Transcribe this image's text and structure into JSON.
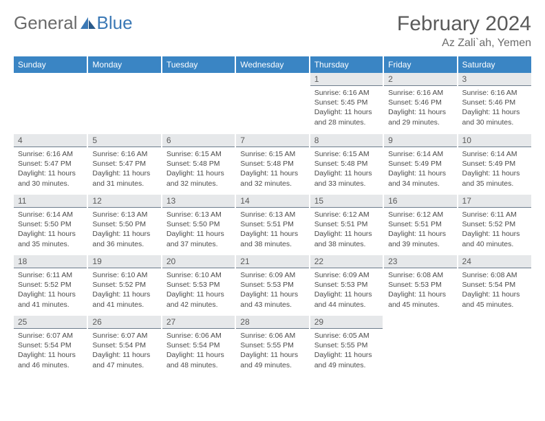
{
  "logo": {
    "general": "General",
    "blue": "Blue"
  },
  "header": {
    "month": "February 2024",
    "location": "Az Zali`ah, Yemen"
  },
  "colors": {
    "brand_blue": "#3a85c4",
    "logo_blue": "#3a78b5",
    "header_gray": "#6a6a6a",
    "daybar_bg": "#e6e8ea",
    "daybar_border": "#6a7a8a",
    "text": "#4a4a4a"
  },
  "weekdays": [
    "Sunday",
    "Monday",
    "Tuesday",
    "Wednesday",
    "Thursday",
    "Friday",
    "Saturday"
  ],
  "weeks": [
    [
      null,
      null,
      null,
      null,
      {
        "n": "1",
        "sr": "Sunrise: 6:16 AM",
        "ss": "Sunset: 5:45 PM",
        "dl": "Daylight: 11 hours and 28 minutes."
      },
      {
        "n": "2",
        "sr": "Sunrise: 6:16 AM",
        "ss": "Sunset: 5:46 PM",
        "dl": "Daylight: 11 hours and 29 minutes."
      },
      {
        "n": "3",
        "sr": "Sunrise: 6:16 AM",
        "ss": "Sunset: 5:46 PM",
        "dl": "Daylight: 11 hours and 30 minutes."
      }
    ],
    [
      {
        "n": "4",
        "sr": "Sunrise: 6:16 AM",
        "ss": "Sunset: 5:47 PM",
        "dl": "Daylight: 11 hours and 30 minutes."
      },
      {
        "n": "5",
        "sr": "Sunrise: 6:16 AM",
        "ss": "Sunset: 5:47 PM",
        "dl": "Daylight: 11 hours and 31 minutes."
      },
      {
        "n": "6",
        "sr": "Sunrise: 6:15 AM",
        "ss": "Sunset: 5:48 PM",
        "dl": "Daylight: 11 hours and 32 minutes."
      },
      {
        "n": "7",
        "sr": "Sunrise: 6:15 AM",
        "ss": "Sunset: 5:48 PM",
        "dl": "Daylight: 11 hours and 32 minutes."
      },
      {
        "n": "8",
        "sr": "Sunrise: 6:15 AM",
        "ss": "Sunset: 5:48 PM",
        "dl": "Daylight: 11 hours and 33 minutes."
      },
      {
        "n": "9",
        "sr": "Sunrise: 6:14 AM",
        "ss": "Sunset: 5:49 PM",
        "dl": "Daylight: 11 hours and 34 minutes."
      },
      {
        "n": "10",
        "sr": "Sunrise: 6:14 AM",
        "ss": "Sunset: 5:49 PM",
        "dl": "Daylight: 11 hours and 35 minutes."
      }
    ],
    [
      {
        "n": "11",
        "sr": "Sunrise: 6:14 AM",
        "ss": "Sunset: 5:50 PM",
        "dl": "Daylight: 11 hours and 35 minutes."
      },
      {
        "n": "12",
        "sr": "Sunrise: 6:13 AM",
        "ss": "Sunset: 5:50 PM",
        "dl": "Daylight: 11 hours and 36 minutes."
      },
      {
        "n": "13",
        "sr": "Sunrise: 6:13 AM",
        "ss": "Sunset: 5:50 PM",
        "dl": "Daylight: 11 hours and 37 minutes."
      },
      {
        "n": "14",
        "sr": "Sunrise: 6:13 AM",
        "ss": "Sunset: 5:51 PM",
        "dl": "Daylight: 11 hours and 38 minutes."
      },
      {
        "n": "15",
        "sr": "Sunrise: 6:12 AM",
        "ss": "Sunset: 5:51 PM",
        "dl": "Daylight: 11 hours and 38 minutes."
      },
      {
        "n": "16",
        "sr": "Sunrise: 6:12 AM",
        "ss": "Sunset: 5:51 PM",
        "dl": "Daylight: 11 hours and 39 minutes."
      },
      {
        "n": "17",
        "sr": "Sunrise: 6:11 AM",
        "ss": "Sunset: 5:52 PM",
        "dl": "Daylight: 11 hours and 40 minutes."
      }
    ],
    [
      {
        "n": "18",
        "sr": "Sunrise: 6:11 AM",
        "ss": "Sunset: 5:52 PM",
        "dl": "Daylight: 11 hours and 41 minutes."
      },
      {
        "n": "19",
        "sr": "Sunrise: 6:10 AM",
        "ss": "Sunset: 5:52 PM",
        "dl": "Daylight: 11 hours and 41 minutes."
      },
      {
        "n": "20",
        "sr": "Sunrise: 6:10 AM",
        "ss": "Sunset: 5:53 PM",
        "dl": "Daylight: 11 hours and 42 minutes."
      },
      {
        "n": "21",
        "sr": "Sunrise: 6:09 AM",
        "ss": "Sunset: 5:53 PM",
        "dl": "Daylight: 11 hours and 43 minutes."
      },
      {
        "n": "22",
        "sr": "Sunrise: 6:09 AM",
        "ss": "Sunset: 5:53 PM",
        "dl": "Daylight: 11 hours and 44 minutes."
      },
      {
        "n": "23",
        "sr": "Sunrise: 6:08 AM",
        "ss": "Sunset: 5:53 PM",
        "dl": "Daylight: 11 hours and 45 minutes."
      },
      {
        "n": "24",
        "sr": "Sunrise: 6:08 AM",
        "ss": "Sunset: 5:54 PM",
        "dl": "Daylight: 11 hours and 45 minutes."
      }
    ],
    [
      {
        "n": "25",
        "sr": "Sunrise: 6:07 AM",
        "ss": "Sunset: 5:54 PM",
        "dl": "Daylight: 11 hours and 46 minutes."
      },
      {
        "n": "26",
        "sr": "Sunrise: 6:07 AM",
        "ss": "Sunset: 5:54 PM",
        "dl": "Daylight: 11 hours and 47 minutes."
      },
      {
        "n": "27",
        "sr": "Sunrise: 6:06 AM",
        "ss": "Sunset: 5:54 PM",
        "dl": "Daylight: 11 hours and 48 minutes."
      },
      {
        "n": "28",
        "sr": "Sunrise: 6:06 AM",
        "ss": "Sunset: 5:55 PM",
        "dl": "Daylight: 11 hours and 49 minutes."
      },
      {
        "n": "29",
        "sr": "Sunrise: 6:05 AM",
        "ss": "Sunset: 5:55 PM",
        "dl": "Daylight: 11 hours and 49 minutes."
      },
      null,
      null
    ]
  ]
}
